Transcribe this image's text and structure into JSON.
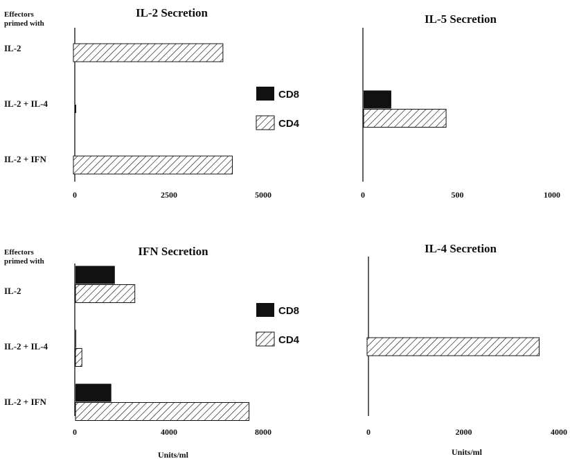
{
  "chart_data": [
    {
      "type": "bar",
      "title": "IL-2 Secretion",
      "prime_label": [
        "Effectors",
        "primed with"
      ],
      "categories": [
        "IL-2",
        "IL-2 + IL-4",
        "IL-2 + IFN"
      ],
      "series": [
        {
          "name": "CD8",
          "values": [
            null,
            null,
            null
          ]
        },
        {
          "name": "CD4",
          "values": [
            3950,
            0,
            4200
          ]
        }
      ],
      "xlim": [
        0,
        5000
      ],
      "xticks": [
        "0",
        "2500",
        "5000"
      ],
      "xlabel": ""
    },
    {
      "type": "bar",
      "title": "IL-5 Secretion",
      "categories": [
        "IL-2",
        "IL-2 + IL-4",
        "IL-2 + IFN"
      ],
      "series": [
        {
          "name": "CD8",
          "values": [
            null,
            150,
            null
          ]
        },
        {
          "name": "CD4",
          "values": [
            null,
            440,
            null
          ]
        }
      ],
      "xlim": [
        0,
        1000
      ],
      "xticks": [
        "0",
        "500",
        "1000"
      ],
      "xlabel": ""
    },
    {
      "type": "bar",
      "title": "IFN Secretion",
      "prime_label": [
        "Effectors",
        "primed with"
      ],
      "categories": [
        "IL-2",
        "IL-2 + IL-4",
        "IL-2 + IFN"
      ],
      "series": [
        {
          "name": "CD8",
          "values": [
            1700,
            50,
            1550
          ]
        },
        {
          "name": "CD4",
          "values": [
            2550,
            300,
            7400
          ]
        }
      ],
      "xlim": [
        0,
        8000
      ],
      "xticks": [
        "0",
        "4000",
        "8000"
      ],
      "xlabel": "Units/ml"
    },
    {
      "type": "bar",
      "title": "IL-4 Secretion",
      "categories": [
        "IL-2",
        "IL-2 + IL-4",
        "IL-2 + IFN"
      ],
      "series": [
        {
          "name": "CD8",
          "values": [
            null,
            null,
            null
          ]
        },
        {
          "name": "CD4",
          "values": [
            null,
            3600,
            null
          ]
        }
      ],
      "xlim": [
        0,
        4000
      ],
      "xticks": [
        "0",
        "2000",
        "4000"
      ],
      "xlabel": "Units/ml"
    }
  ],
  "legend": {
    "items": [
      {
        "name": "CD8",
        "style": "solid",
        "color": "#111111"
      },
      {
        "name": "CD4",
        "style": "hatched",
        "color": "#111111"
      }
    ]
  }
}
